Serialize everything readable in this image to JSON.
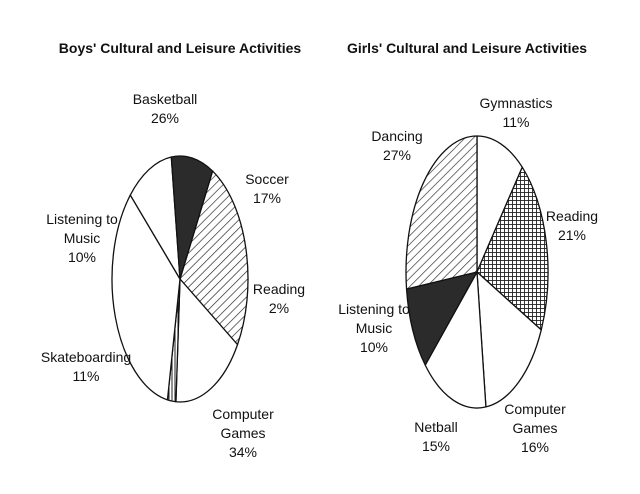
{
  "chart_data": [
    {
      "type": "pie",
      "title": "Boys' Cultural and Leisure Activities",
      "slices": [
        {
          "label": "Basketball",
          "value": 26,
          "fill": "diag"
        },
        {
          "label": "Soccer",
          "value": 17,
          "fill": "white"
        },
        {
          "label": "Reading",
          "value": 2,
          "fill": "vert"
        },
        {
          "label": "Computer Games",
          "value": 34,
          "fill": "white"
        },
        {
          "label": "Skateboarding",
          "value": 11,
          "fill": "white"
        },
        {
          "label": "Listening to Music",
          "value": 10,
          "fill": "dark"
        }
      ]
    },
    {
      "type": "pie",
      "title": "Girls' Cultural and Leisure Activities",
      "slices": [
        {
          "label": "Gymnastics",
          "value": 11,
          "fill": "white"
        },
        {
          "label": "Reading",
          "value": 21,
          "fill": "grid"
        },
        {
          "label": "Computer Games",
          "value": 16,
          "fill": "white"
        },
        {
          "label": "Netball",
          "value": 15,
          "fill": "white"
        },
        {
          "label": "Listening to Music",
          "value": 10,
          "fill": "dark"
        },
        {
          "label": "Dancing",
          "value": 27,
          "fill": "diag"
        }
      ]
    }
  ],
  "labels": {
    "boys": {
      "basketball": {
        "name": "Basketball",
        "pct": "26%"
      },
      "soccer": {
        "name": "Soccer",
        "pct": "17%"
      },
      "reading": {
        "name": "Reading",
        "pct": "2%"
      },
      "computer_games": {
        "name1": "Computer",
        "name2": "Games",
        "pct": "34%"
      },
      "skateboarding": {
        "name": "Skateboarding",
        "pct": "11%"
      },
      "listening": {
        "name1": "Listening to",
        "name2": "Music",
        "pct": "10%"
      }
    },
    "girls": {
      "gymnastics": {
        "name": "Gymnastics",
        "pct": "11%"
      },
      "reading": {
        "name": "Reading",
        "pct": "21%"
      },
      "computer_games": {
        "name1": "Computer",
        "name2": "Games",
        "pct": "16%"
      },
      "netball": {
        "name": "Netball",
        "pct": "15%"
      },
      "listening": {
        "name1": "Listening to",
        "name2": "Music",
        "pct": "10%"
      },
      "dancing": {
        "name": "Dancing",
        "pct": "27%"
      }
    }
  },
  "colors": {
    "ink": "#111111",
    "dark": "#2b2b2b",
    "background": "#ffffff"
  }
}
